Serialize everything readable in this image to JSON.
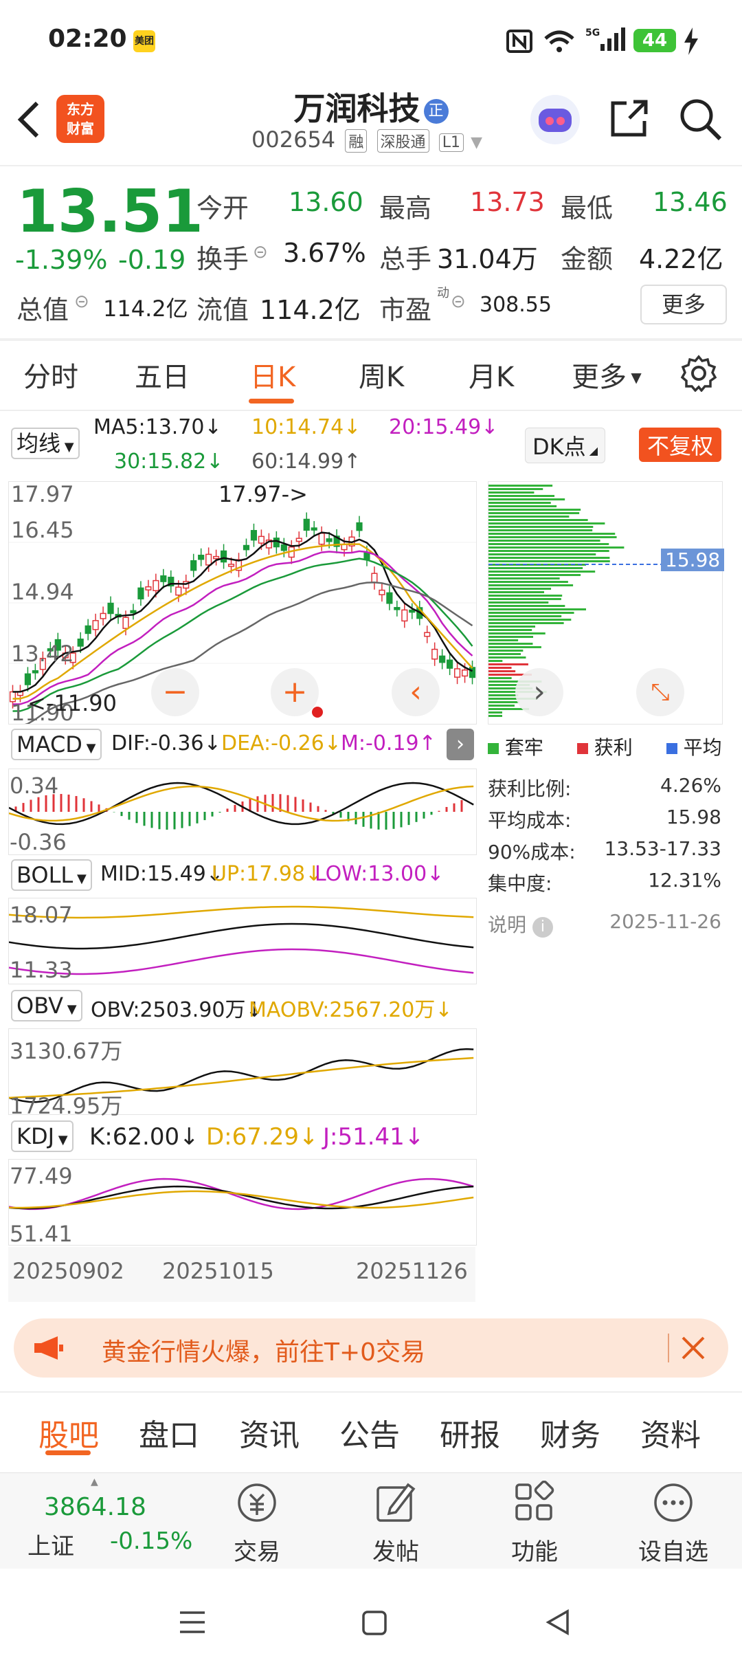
{
  "status_bar": {
    "time": "02:20",
    "app_badge": "美团",
    "battery": "44"
  },
  "header": {
    "logo_line1": "东方",
    "logo_line2": "财富",
    "title": "万润科技",
    "title_badge": "正",
    "code": "002654",
    "tags": [
      "融",
      "深股通",
      "L1"
    ]
  },
  "quote": {
    "price": "13.51",
    "change_pct": "-1.39%",
    "change": "-0.19",
    "open_label": "今开",
    "open": "13.60",
    "high_label": "最高",
    "high": "13.73",
    "low_label": "最低",
    "low": "13.46",
    "turnover_label": "换手",
    "turnover": "3.67%",
    "volume_label": "总手",
    "volume": "31.04万",
    "amount_label": "金额",
    "amount": "4.22亿",
    "mktcap_label": "总值",
    "mktcap": "114.2亿",
    "float_label": "流值",
    "float": "114.2亿",
    "pe_label": "市盈",
    "pe_sup": "动",
    "pe": "308.55",
    "more": "更多"
  },
  "kline_tabs": [
    "分时",
    "五日",
    "日K",
    "周K",
    "月K",
    "更多"
  ],
  "ma": {
    "selector": "均线",
    "ma5": "MA5:13.70↓",
    "ma10": "10:14.74↓",
    "ma20": "20:15.49↓",
    "ma30": "30:15.82↓",
    "ma60": "60:14.99↑"
  },
  "dk": {
    "label": "DK点",
    "fuquan": "不复权"
  },
  "kchart": {
    "y_labels": [
      "17.97",
      "16.45",
      "14.94",
      "13.42",
      "11.90"
    ],
    "max_note": "17.97->",
    "min_note": "<-11.90"
  },
  "chips": {
    "avg_tag": "15.98",
    "legend": [
      "套牢",
      "获利",
      "平均"
    ],
    "rows": [
      {
        "label": "获利比例:",
        "value": "4.26%"
      },
      {
        "label": "平均成本:",
        "value": "15.98"
      },
      {
        "label": "90%成本:",
        "value": "13.53-17.33"
      },
      {
        "label": "集中度:",
        "value": "12.31%"
      }
    ],
    "note": "说明",
    "date": "2025-11-26"
  },
  "macd": {
    "selector": "MACD",
    "dif": "DIF:-0.36↓",
    "dea": "DEA:-0.26↓",
    "m": "M:-0.19↑",
    "top": "0.34",
    "bottom": "-0.36"
  },
  "boll": {
    "selector": "BOLL",
    "mid": "MID:15.49↓",
    "up": "UP:17.98↓",
    "low": "LOW:13.00↓",
    "top": "18.07",
    "bottom": "11.33"
  },
  "obv": {
    "selector": "OBV",
    "obv": "OBV:2503.90万↓",
    "maobv": "MAOBV:2567.20万↓",
    "top": "3130.67万",
    "bottom": "1724.95万"
  },
  "kdj": {
    "selector": "KDJ",
    "k": "K:62.00↓",
    "d": "D:67.29↓",
    "j": "J:51.41↓",
    "top": "77.49",
    "bottom": "51.41"
  },
  "dates": [
    "20250902",
    "20251015",
    "20251126"
  ],
  "banner": {
    "text": "黄金行情火爆，前往T+0交易"
  },
  "bottom_tabs": [
    "股吧",
    "盘口",
    "资讯",
    "公告",
    "研报",
    "财务",
    "资料"
  ],
  "index": {
    "value": "3864.18",
    "name": "上证",
    "change": "-0.15%"
  },
  "bottom_actions": [
    "交易",
    "发帖",
    "功能",
    "设自选"
  ],
  "colors": {
    "up": "#e0343a",
    "down": "#1a9a3a",
    "accent": "#f26522"
  }
}
